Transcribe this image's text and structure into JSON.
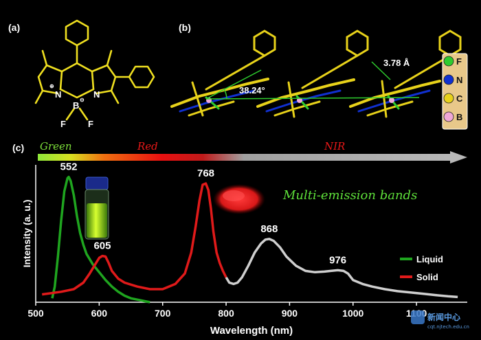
{
  "panel_labels": {
    "a": "(a)",
    "b": "(b)",
    "c": "(c)"
  },
  "molecule_labels": {
    "boron": "B",
    "nitrogen_left": "N",
    "nitrogen_right": "N",
    "fluorine_left": "F",
    "fluorine_right": "F",
    "plus_charge": "⊕",
    "minus_charge": "⊖"
  },
  "crystal_annotations": {
    "angle": "38.24°",
    "distance": "3.78 Å"
  },
  "element_legend": [
    {
      "symbol": "F",
      "color": "#2ecc2e"
    },
    {
      "symbol": "N",
      "color": "#1030d0"
    },
    {
      "symbol": "C",
      "color": "#e8d21a"
    },
    {
      "symbol": "B",
      "color": "#f0a8d8"
    }
  ],
  "spectrum_bar": {
    "green": "Green",
    "red": "Red",
    "nir": "NIR"
  },
  "annotation": "Multi-emission bands",
  "watermark": {
    "title": "新闻中心",
    "url": "cqt.njtech.edu.cn"
  },
  "chart_data": {
    "type": "line",
    "xlabel": "Wavelength (nm)",
    "ylabel": "Intensity (a. u.)",
    "xlim": [
      500,
      1180
    ],
    "xticks": [
      500,
      600,
      700,
      800,
      900,
      1000,
      1100
    ],
    "ylim": [
      0,
      1.0
    ],
    "legend_position": "right",
    "series": [
      {
        "name": "Liquid",
        "color": "#1fa51f",
        "x": [
          526,
          530,
          535,
          540,
          545,
          550,
          552,
          555,
          560,
          565,
          570,
          575,
          580,
          590,
          600,
          610,
          620,
          630,
          640,
          650,
          660,
          670,
          680
        ],
        "y": [
          0.03,
          0.12,
          0.35,
          0.62,
          0.85,
          0.95,
          0.96,
          0.93,
          0.82,
          0.66,
          0.53,
          0.44,
          0.37,
          0.29,
          0.23,
          0.17,
          0.12,
          0.08,
          0.05,
          0.03,
          0.02,
          0.01,
          0.0
        ]
      },
      {
        "name": "Solid",
        "color": "#e01a1a",
        "x": [
          510,
          540,
          560,
          575,
          585,
          595,
          600,
          605,
          610,
          615,
          620,
          630,
          640,
          660,
          680,
          700,
          720,
          735,
          745,
          752,
          758,
          763,
          768,
          772,
          776,
          780,
          785,
          790,
          795,
          800,
          805,
          812,
          818,
          825,
          835,
          845,
          855,
          862,
          868,
          875,
          885,
          895,
          910,
          925,
          940,
          955,
          965,
          976,
          985,
          992,
          1000,
          1015,
          1030,
          1050,
          1070,
          1090,
          1110,
          1130,
          1150,
          1165
        ],
        "y": [
          0.06,
          0.08,
          0.1,
          0.15,
          0.22,
          0.3,
          0.34,
          0.355,
          0.35,
          0.3,
          0.24,
          0.18,
          0.15,
          0.12,
          0.1,
          0.1,
          0.14,
          0.22,
          0.38,
          0.58,
          0.78,
          0.9,
          0.91,
          0.86,
          0.72,
          0.54,
          0.38,
          0.3,
          0.24,
          0.19,
          0.15,
          0.14,
          0.15,
          0.19,
          0.28,
          0.38,
          0.45,
          0.48,
          0.485,
          0.47,
          0.42,
          0.35,
          0.28,
          0.24,
          0.23,
          0.235,
          0.24,
          0.245,
          0.24,
          0.22,
          0.17,
          0.14,
          0.12,
          0.1,
          0.085,
          0.075,
          0.065,
          0.055,
          0.045,
          0.04
        ]
      }
    ],
    "peak_labels": [
      {
        "text": "552",
        "x": 552,
        "y": 0.96
      },
      {
        "text": "605",
        "x": 605,
        "y": 0.355
      },
      {
        "text": "768",
        "x": 768,
        "y": 0.91
      },
      {
        "text": "868",
        "x": 868,
        "y": 0.485
      },
      {
        "text": "976",
        "x": 976,
        "y": 0.245
      }
    ]
  }
}
